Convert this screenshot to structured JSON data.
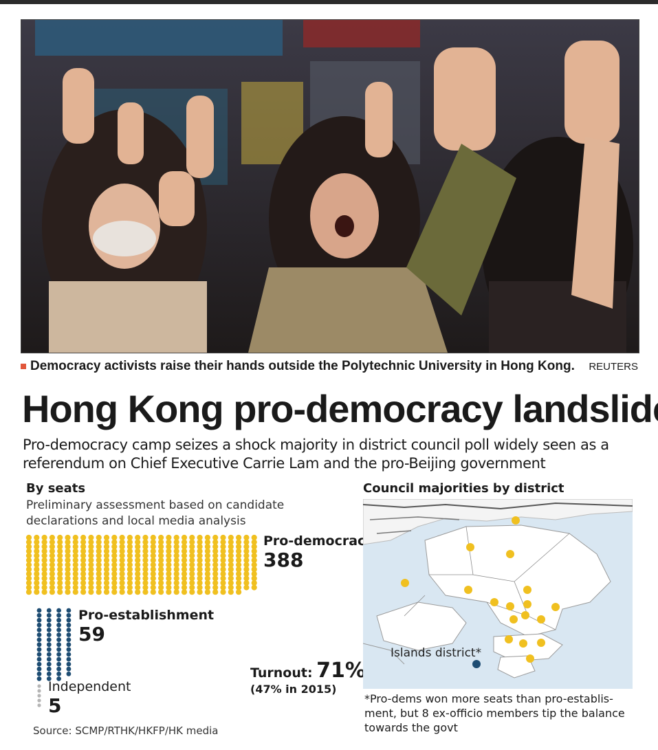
{
  "caption": {
    "text": "Democracy activists raise their hands outside the Polytechnic University in Hong Kong.",
    "credit": "REUTERS"
  },
  "headline": "Hong Kong pro-democracy landslide",
  "subhead": "Pro-democracy camp seizes a shock majority in district council poll widely seen as a referendum on Chief Executive Carrie Lam and the pro-Beijing government",
  "colors": {
    "pro_democracy": "#f0c020",
    "pro_establishment": "#1e4d73",
    "independent": "#b5b5b5",
    "caption_bullet": "#e1563a",
    "map_water": "#d9e7f2",
    "map_land": "#ffffff"
  },
  "chart_data": [
    {
      "type": "waffle",
      "title": "By seats",
      "subtitle": "Preliminary assessment based on candidate declarations and local media analysis",
      "categories": [
        "Pro-democracy",
        "Pro-establishment",
        "Independent"
      ],
      "values": [
        388,
        59,
        5
      ],
      "turnout": {
        "label": "Turnout:",
        "value": "71%",
        "previous": "(47% in 2015)"
      }
    },
    {
      "type": "map",
      "title": "Council majorities by district",
      "annotation": "Islands district*",
      "footnote": "*Pro-dems won more seats than pro-establis-ment, but 8 ex-officio members tip the balance towards the govt"
    }
  ],
  "source": "Source: SCMP/RTHK/HKFP/HK media"
}
